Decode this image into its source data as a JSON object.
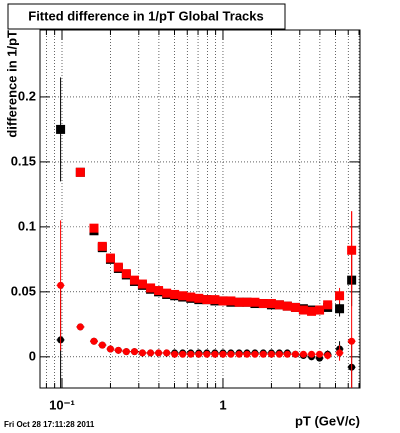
{
  "chart_data": {
    "type": "scatter",
    "title": "Fitted difference in 1/pT  Global Tracks",
    "xlabel": "pT (GeV/c)",
    "ylabel": "difference in 1/pT",
    "annotation": "Fri Oct 28 17:11:28 2011",
    "xlog": true,
    "grid": true,
    "xlim": [
      0.073,
      7.1
    ],
    "ylim": [
      -0.024,
      0.2515
    ],
    "xticks": [
      {
        "value": 0.1,
        "label": "10⁻¹"
      },
      1
    ],
    "xminorticks": [
      0.08,
      0.09,
      0.2,
      0.3,
      0.4,
      0.5,
      0.6,
      0.7,
      0.8,
      0.9,
      2,
      3,
      4,
      5,
      6,
      7
    ],
    "yticks": [
      0,
      0.05,
      0.1,
      0.15,
      0.2
    ],
    "x": [
      0.098,
      0.13,
      0.158,
      0.178,
      0.2,
      0.224,
      0.251,
      0.282,
      0.316,
      0.355,
      0.398,
      0.447,
      0.501,
      0.562,
      0.631,
      0.708,
      0.794,
      0.891,
      1.0,
      1.12,
      1.26,
      1.41,
      1.58,
      1.78,
      2.0,
      2.24,
      2.51,
      2.82,
      3.16,
      3.55,
      3.98,
      4.47,
      5.3,
      6.3
    ],
    "series": [
      {
        "color": "#000000",
        "marker": "square",
        "values": [
          0.175,
          0.142,
          0.097,
          0.084,
          0.075,
          0.068,
          0.063,
          0.058,
          0.055,
          0.052,
          0.05,
          0.048,
          0.047,
          0.046,
          0.045,
          0.044,
          0.044,
          0.043,
          0.043,
          0.042,
          0.042,
          0.042,
          0.041,
          0.041,
          0.04,
          0.04,
          0.039,
          0.038,
          0.037,
          0.036,
          0.036,
          0.038,
          0.037,
          0.059
        ],
        "errors": [
          0.04,
          0.002,
          0.001,
          0.001,
          0.001,
          0.001,
          0.001,
          0.001,
          0.001,
          0.001,
          0.001,
          0.001,
          0.001,
          0.001,
          0.001,
          0.001,
          0.001,
          0.001,
          0.001,
          0.001,
          0.001,
          0.001,
          0.001,
          0.001,
          0.001,
          0.001,
          0.001,
          0.001,
          0.001,
          0.002,
          0.002,
          0.003,
          0.006,
          0.02
        ]
      },
      {
        "color": "#ff0000",
        "marker": "square",
        "values": [
          null,
          0.142,
          0.099,
          0.085,
          0.076,
          0.069,
          0.064,
          0.059,
          0.056,
          0.053,
          0.051,
          0.049,
          0.048,
          0.047,
          0.046,
          0.045,
          0.044,
          0.044,
          0.043,
          0.043,
          0.042,
          0.042,
          0.042,
          0.041,
          0.041,
          0.04,
          0.039,
          0.038,
          0.036,
          0.035,
          0.036,
          0.04,
          0.047,
          0.082
        ],
        "errors": [
          null,
          0.002,
          0.001,
          0.001,
          0.001,
          0.001,
          0.001,
          0.001,
          0.001,
          0.001,
          0.001,
          0.001,
          0.001,
          0.001,
          0.001,
          0.001,
          0.001,
          0.001,
          0.001,
          0.001,
          0.001,
          0.001,
          0.001,
          0.001,
          0.001,
          0.001,
          0.001,
          0.001,
          0.001,
          0.002,
          0.002,
          0.003,
          0.006,
          0.03
        ]
      },
      {
        "color": "#000000",
        "marker": "circle",
        "values": [
          0.013,
          0.023,
          0.012,
          0.009,
          0.006,
          0.005,
          0.004,
          0.004,
          0.003,
          0.003,
          0.003,
          0.003,
          0.003,
          0.003,
          0.003,
          0.003,
          0.003,
          0.003,
          0.003,
          0.003,
          0.003,
          0.003,
          0.003,
          0.003,
          0.003,
          0.003,
          0.003,
          0.002,
          0.001,
          0.0,
          -0.001,
          0.002,
          0.006,
          -0.008
        ],
        "errors": [
          0.04,
          0.002,
          0.001,
          0.001,
          0.001,
          0.001,
          0.001,
          0.001,
          0.001,
          0.001,
          0.001,
          0.001,
          0.001,
          0.001,
          0.001,
          0.001,
          0.001,
          0.001,
          0.001,
          0.001,
          0.001,
          0.001,
          0.001,
          0.001,
          0.001,
          0.001,
          0.001,
          0.001,
          0.001,
          0.002,
          0.002,
          0.003,
          0.006,
          0.02
        ]
      },
      {
        "color": "#ff0000",
        "marker": "circle",
        "values": [
          0.055,
          0.023,
          0.012,
          0.009,
          0.006,
          0.005,
          0.004,
          0.004,
          0.003,
          0.003,
          0.003,
          0.003,
          0.002,
          0.002,
          0.002,
          0.002,
          0.002,
          0.002,
          0.002,
          0.002,
          0.002,
          0.002,
          0.002,
          0.002,
          0.002,
          0.002,
          0.002,
          0.002,
          0.002,
          0.002,
          0.002,
          0.001,
          0.003,
          0.012
        ],
        "errors": [
          0.05,
          0.002,
          0.001,
          0.001,
          0.001,
          0.001,
          0.001,
          0.001,
          0.001,
          0.001,
          0.001,
          0.001,
          0.001,
          0.001,
          0.001,
          0.001,
          0.001,
          0.001,
          0.001,
          0.001,
          0.001,
          0.001,
          0.001,
          0.001,
          0.001,
          0.001,
          0.001,
          0.001,
          0.001,
          0.002,
          0.002,
          0.003,
          0.006,
          0.1
        ]
      }
    ]
  }
}
